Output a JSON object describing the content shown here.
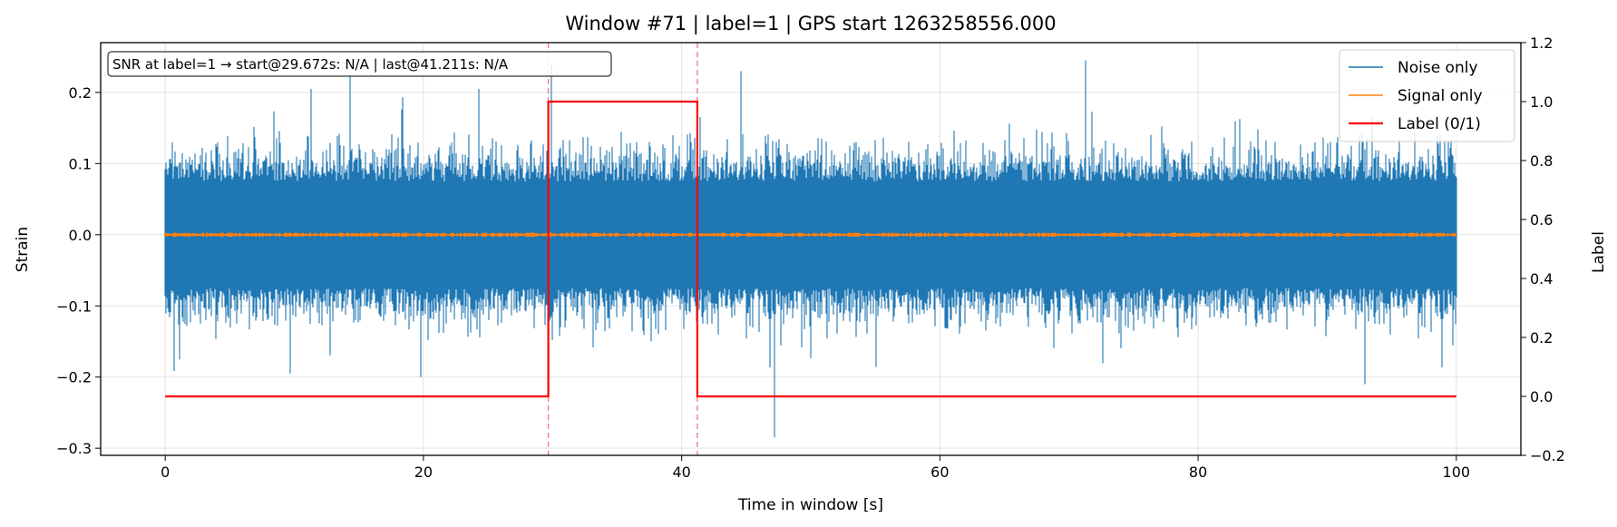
{
  "chart_data": {
    "type": "line",
    "title": "Window #71  |  label=1  |  GPS start 1263258556.000",
    "xlabel": "Time in window [s]",
    "ylabel": "Strain",
    "ylabel_right": "Label",
    "xlim": [
      -5,
      105
    ],
    "ylim": [
      -0.31,
      0.27
    ],
    "ylim_right": [
      -0.2,
      1.2
    ],
    "x_ticks": [
      0,
      20,
      40,
      60,
      80,
      100
    ],
    "x_tick_labels": [
      "0",
      "20",
      "40",
      "60",
      "80",
      "100"
    ],
    "y_ticks": [
      -0.3,
      -0.2,
      -0.1,
      0.0,
      0.1,
      0.2
    ],
    "y_tick_labels": [
      "−0.3",
      "−0.2",
      "−0.1",
      "0.0",
      "0.1",
      "0.2"
    ],
    "y_right_ticks": [
      -0.2,
      0.0,
      0.2,
      0.4,
      0.6,
      0.8,
      1.0,
      1.2
    ],
    "y_right_tick_labels": [
      "−0.2",
      "0.0",
      "0.2",
      "0.4",
      "0.6",
      "0.8",
      "1.0",
      "1.2"
    ],
    "grid": true,
    "legend_position": "top-right",
    "annotation": "SNR at label=1 → start@29.672s: N/A | last@41.211s: N/A",
    "vlines": [
      29.672,
      41.211
    ],
    "series": [
      {
        "name": "Noise only",
        "color": "#1f77b4",
        "axis": "left",
        "x_range": [
          0,
          100
        ],
        "typical_amplitude": 0.1,
        "peaks": [
          {
            "x": 1.1,
            "y": -0.175
          },
          {
            "x": 9.7,
            "y": -0.195
          },
          {
            "x": 11.3,
            "y": 0.205
          },
          {
            "x": 14.3,
            "y": 0.225
          },
          {
            "x": 19.8,
            "y": -0.2
          },
          {
            "x": 24.3,
            "y": 0.205
          },
          {
            "x": 29.9,
            "y": 0.24
          },
          {
            "x": 47.2,
            "y": -0.285
          },
          {
            "x": 44.6,
            "y": 0.23
          },
          {
            "x": 71.3,
            "y": 0.245
          },
          {
            "x": 92.9,
            "y": -0.21
          }
        ]
      },
      {
        "name": "Signal only",
        "color": "#ff7f0e",
        "axis": "left",
        "x_range": [
          0,
          100
        ],
        "typical_amplitude": 0.002
      },
      {
        "name": "Label (0/1)",
        "color": "#ff0000",
        "axis": "right",
        "x": [
          0,
          29.672,
          29.672,
          41.211,
          41.211,
          100
        ],
        "y": [
          0,
          0,
          1,
          1,
          0,
          0
        ]
      }
    ]
  }
}
